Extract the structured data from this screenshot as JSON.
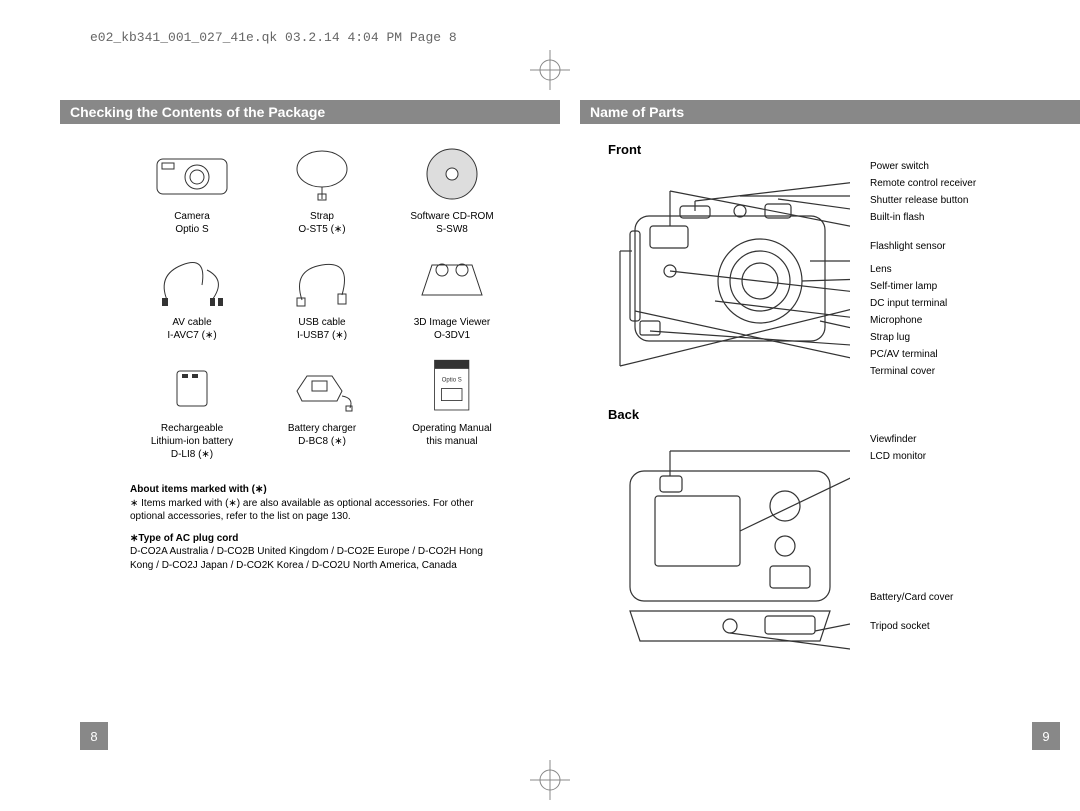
{
  "header": "e02_kb341_001_027_41e.qk  03.2.14  4:04 PM  Page 8",
  "colors": {
    "section_bg": "#888888",
    "section_fg": "#ffffff",
    "text": "#000000",
    "muted": "#666666",
    "line": "#333333"
  },
  "left": {
    "title": "Checking the Contents of the Package",
    "items": [
      {
        "name": "Camera",
        "model": "Optio S"
      },
      {
        "name": "Strap",
        "model": "O-ST5 (∗)"
      },
      {
        "name": "Software CD-ROM",
        "model": "S-SW8"
      },
      {
        "name": "AV cable",
        "model": "I-AVC7 (∗)"
      },
      {
        "name": "USB cable",
        "model": "I-USB7 (∗)"
      },
      {
        "name": "3D Image Viewer",
        "model": "O-3DV1"
      },
      {
        "name": "Rechargeable",
        "model": "Lithium-ion battery",
        "model2": "D-LI8 (∗)"
      },
      {
        "name": "Battery charger",
        "model": "D-BC8 (∗)"
      },
      {
        "name": "Operating Manual",
        "model": "this manual"
      }
    ],
    "note1_title": "About items marked with (∗)",
    "note1_body": "∗ Items marked with (∗) are also available as optional accessories. For other optional accessories, refer to the list on page 130.",
    "note2_title": "∗Type of AC plug cord",
    "note2_body": "D-CO2A  Australia / D-CO2B  United Kingdom / D-CO2E  Europe / D-CO2H  Hong Kong / D-CO2J  Japan / D-CO2K  Korea / D-CO2U  North America, Canada",
    "page_num": "8"
  },
  "right": {
    "title": "Name of Parts",
    "front_heading": "Front",
    "front_labels": [
      "Power switch",
      "Remote control receiver",
      "Shutter release button",
      "Built-in flash",
      "Flashlight sensor",
      "Lens",
      "Self-timer lamp",
      "DC input terminal",
      "Microphone",
      "Strap lug",
      "PC/AV terminal",
      "Terminal cover"
    ],
    "back_heading": "Back",
    "back_labels": [
      "Viewfinder",
      "LCD monitor",
      "Battery/Card cover",
      "Tripod socket"
    ],
    "page_num": "9"
  }
}
